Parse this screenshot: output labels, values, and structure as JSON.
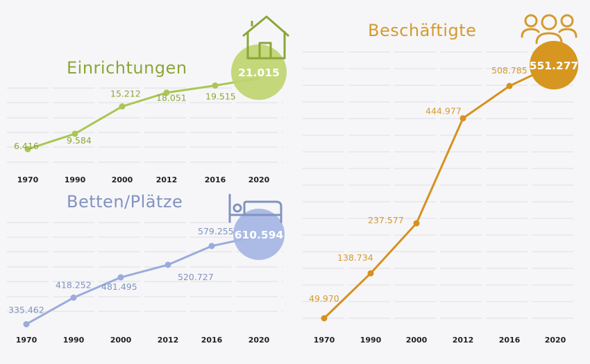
{
  "colors": {
    "green": "#aac654",
    "green_text": "#8ba637",
    "green_circle": "#bfd470",
    "blue": "#9aabdc",
    "blue_text": "#8292c0",
    "blue_circle": "#a5b5e3",
    "orange": "#d6911e",
    "orange_text": "#d49a2d",
    "orange_circle": "#d6961f",
    "grid": "#e3e3e8"
  },
  "icons": {
    "einrichtungen": "house-icon",
    "betten": "bed-icon",
    "beschaeftigte": "people-group-icon"
  },
  "chart_data": [
    {
      "type": "line",
      "title": "Einrichtungen",
      "categories": [
        "1970",
        "1990",
        "2000",
        "2012",
        "2016",
        "2020"
      ],
      "values": [
        6416,
        9584,
        15212,
        18051,
        19515,
        21015
      ],
      "value_labels": [
        "6.416",
        "9.584",
        "15.212",
        "18.051",
        "19.515",
        "21.015"
      ],
      "grid": true
    },
    {
      "type": "line",
      "title": "Betten/Plätze",
      "categories": [
        "1970",
        "1990",
        "2000",
        "2012",
        "2016",
        "2020"
      ],
      "values": [
        335462,
        418252,
        481495,
        520727,
        579255,
        610594
      ],
      "value_labels": [
        "335.462",
        "418.252",
        "481.495",
        "520.727",
        "579.255",
        "610.594"
      ],
      "grid": true
    },
    {
      "type": "line",
      "title": "Beschäftigte",
      "categories": [
        "1970",
        "1990",
        "2000",
        "2012",
        "2016",
        "2020"
      ],
      "values": [
        49970,
        138734,
        237577,
        444977,
        508785,
        551277
      ],
      "value_labels": [
        "49.970",
        "138.734",
        "237.577",
        "444.977",
        "508.785",
        "551.277"
      ],
      "grid": true
    }
  ]
}
